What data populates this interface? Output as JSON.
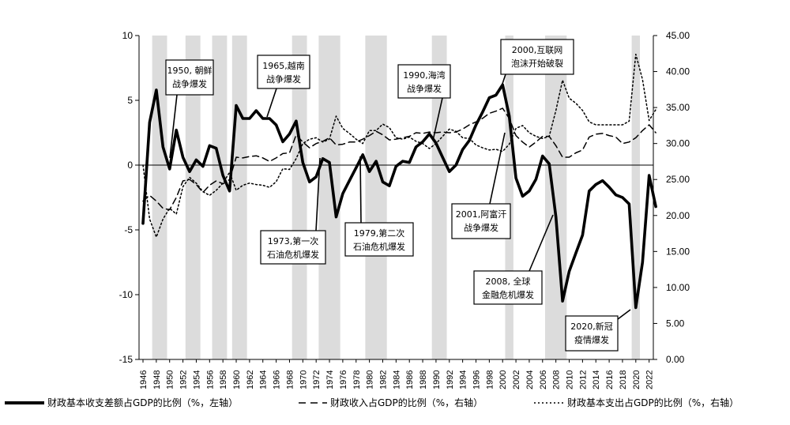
{
  "chart_data": {
    "type": "line",
    "title": "",
    "left_axis": {
      "ylim": [
        -15,
        10
      ],
      "ticks": [
        "-15",
        "-10",
        "-5",
        "0",
        "5",
        "10"
      ]
    },
    "right_axis": {
      "ylim": [
        0,
        45
      ],
      "ticks": [
        "0.00",
        "5.00",
        "10.00",
        "15.00",
        "20.00",
        "25.00",
        "30.00",
        "35.00",
        "40.00",
        "45.00"
      ]
    },
    "x_ticks": [
      "1946",
      "1948",
      "1950",
      "1952",
      "1954",
      "1956",
      "1958",
      "1960",
      "1962",
      "1964",
      "1966",
      "1968",
      "1970",
      "1972",
      "1974",
      "1976",
      "1978",
      "1980",
      "1982",
      "1984",
      "1986",
      "1988",
      "1990",
      "1992",
      "1994",
      "1996",
      "1998",
      "2000",
      "2002",
      "2004",
      "2006",
      "2008",
      "2010",
      "2012",
      "2014",
      "2016",
      "2018",
      "2020",
      "2022"
    ],
    "recessions": [
      [
        1948,
        1949
      ],
      [
        1953,
        1954
      ],
      [
        1957,
        1958
      ],
      [
        1960,
        1961
      ],
      [
        1969,
        1970
      ],
      [
        1973,
        1975
      ],
      [
        1980,
        1982
      ],
      [
        1990,
        1991
      ],
      [
        2001,
        2001
      ],
      [
        2007,
        2009
      ],
      [
        2020,
        2020
      ]
    ],
    "series": [
      {
        "name": "财政基本收支差额占GDP的比例（%，左轴）",
        "axis": "left",
        "style": "solid",
        "x": [
          1946,
          1947,
          1948,
          1949,
          1950,
          1951,
          1952,
          1953,
          1954,
          1955,
          1956,
          1957,
          1958,
          1959,
          1960,
          1961,
          1962,
          1963,
          1964,
          1965,
          1966,
          1967,
          1968,
          1969,
          1970,
          1971,
          1972,
          1973,
          1974,
          1975,
          1976,
          1977,
          1978,
          1979,
          1980,
          1981,
          1982,
          1983,
          1984,
          1985,
          1986,
          1987,
          1988,
          1989,
          1990,
          1991,
          1992,
          1993,
          1994,
          1995,
          1996,
          1997,
          1998,
          1999,
          2000,
          2001,
          2002,
          2003,
          2004,
          2005,
          2006,
          2007,
          2008,
          2009,
          2010,
          2011,
          2012,
          2013,
          2014,
          2015,
          2016,
          2017,
          2018,
          2019,
          2020,
          2021,
          2022,
          2023
        ],
        "values": [
          -4.5,
          3.3,
          5.8,
          1.4,
          -0.3,
          2.7,
          0.6,
          -0.5,
          0.4,
          -0.1,
          1.5,
          1.3,
          -0.8,
          -2.0,
          4.6,
          3.6,
          3.6,
          4.2,
          3.6,
          3.6,
          3.1,
          1.8,
          2.4,
          3.4,
          0.2,
          -1.3,
          -0.9,
          0.5,
          0.2,
          -4.0,
          -2.2,
          -1.2,
          -0.2,
          0.8,
          -0.5,
          0.3,
          -1.3,
          -1.6,
          -0.1,
          0.3,
          0.2,
          1.4,
          1.8,
          2.4,
          1.7,
          0.6,
          -0.5,
          0.0,
          1.2,
          1.9,
          3.1,
          4.1,
          5.2,
          5.4,
          6.2,
          3.8,
          -1.0,
          -2.4,
          -2.0,
          -1.1,
          0.7,
          0.1,
          -4.0,
          -10.5,
          -8.2,
          -6.8,
          -5.4,
          -2.0,
          -1.5,
          -1.2,
          -1.7,
          -2.3,
          -2.5,
          -3.0,
          -11.0,
          -7.5,
          -0.8,
          -3.2
        ]
      },
      {
        "name": "财政收入占GDP的比例（%，右轴）",
        "axis": "right",
        "style": "dash",
        "x": [
          1946,
          1947,
          1948,
          1949,
          1950,
          1951,
          1952,
          1953,
          1954,
          1955,
          1956,
          1957,
          1958,
          1959,
          1960,
          1961,
          1962,
          1963,
          1964,
          1965,
          1966,
          1967,
          1968,
          1969,
          1970,
          1971,
          1972,
          1973,
          1974,
          1975,
          1976,
          1977,
          1978,
          1979,
          1980,
          1981,
          1982,
          1983,
          1984,
          1985,
          1986,
          1987,
          1988,
          1989,
          1990,
          1991,
          1992,
          1993,
          1994,
          1995,
          1996,
          1997,
          1998,
          1999,
          2000,
          2001,
          2002,
          2003,
          2004,
          2005,
          2006,
          2007,
          2008,
          2009,
          2010,
          2011,
          2012,
          2013,
          2014,
          2015,
          2016,
          2017,
          2018,
          2019,
          2020,
          2021,
          2022,
          2023
        ],
        "values": [
          22,
          22.8,
          22,
          21,
          20.8,
          22.5,
          24.8,
          25,
          24.3,
          23.2,
          24.2,
          24.8,
          24.4,
          25,
          28.1,
          28,
          28.2,
          28.3,
          28,
          27.5,
          28,
          28.6,
          28.7,
          31.2,
          30.2,
          29.4,
          30,
          30.3,
          30.8,
          29.8,
          29.9,
          30.2,
          30.2,
          30.6,
          31.1,
          31.7,
          31.2,
          30.5,
          30.6,
          30.8,
          31.0,
          31.5,
          31.4,
          31.6,
          31.5,
          31.6,
          31.5,
          31.6,
          32,
          32.6,
          33,
          33.5,
          34.2,
          34.5,
          34.9,
          33.5,
          31.1,
          30.2,
          29.5,
          30.2,
          31.0,
          31.0,
          29.7,
          28.1,
          28.1,
          28.7,
          29.1,
          30.9,
          31.3,
          31.4,
          31.1,
          30.9,
          30.0,
          30.2,
          30.8,
          31.8,
          32.6,
          31.5
        ]
      },
      {
        "name": "财政基本支出占GDP的比例（%，右轴）",
        "axis": "right",
        "style": "dot",
        "x": [
          1946,
          1947,
          1948,
          1949,
          1950,
          1951,
          1952,
          1953,
          1954,
          1955,
          1956,
          1957,
          1958,
          1959,
          1960,
          1961,
          1962,
          1963,
          1964,
          1965,
          1966,
          1967,
          1968,
          1969,
          1970,
          1971,
          1972,
          1973,
          1974,
          1975,
          1976,
          1977,
          1978,
          1979,
          1980,
          1981,
          1982,
          1983,
          1984,
          1985,
          1986,
          1987,
          1988,
          1989,
          1990,
          1991,
          1992,
          1993,
          1994,
          1995,
          1996,
          1997,
          1998,
          1999,
          2000,
          2001,
          2002,
          2003,
          2004,
          2005,
          2006,
          2007,
          2008,
          2009,
          2010,
          2011,
          2012,
          2013,
          2014,
          2015,
          2016,
          2017,
          2018,
          2019,
          2020,
          2021,
          2022,
          2023
        ],
        "values": [
          27,
          19.5,
          17,
          19.5,
          21,
          20.2,
          24,
          25.3,
          24.5,
          23.3,
          22.8,
          23.5,
          24.5,
          26,
          23.5,
          24.2,
          24.5,
          24.3,
          24.2,
          23.9,
          24.7,
          26.5,
          26.4,
          27.9,
          30,
          30.6,
          30.8,
          30.2,
          30.6,
          33.8,
          32.1,
          31.4,
          30.6,
          30.0,
          31.8,
          31.8,
          32.7,
          32.2,
          30.8,
          30.6,
          30.9,
          30.3,
          30.0,
          29.3,
          30.0,
          31.0,
          32.0,
          31.7,
          30.8,
          30.7,
          29.8,
          29.4,
          29.1,
          29.2,
          28.9,
          29.9,
          32.1,
          32.5,
          31.5,
          31.0,
          30.7,
          31.0,
          34.6,
          38.8,
          36.3,
          35.6,
          34.6,
          33.0,
          32.6,
          32.6,
          32.6,
          32.6,
          32.6,
          33.1,
          42.4,
          38.9,
          33.2,
          34.7
        ]
      }
    ]
  },
  "annotations": [
    {
      "id": "1950",
      "lines": [
        "1950, 朝鲜",
        "战争爆发"
      ]
    },
    {
      "id": "1965",
      "lines": [
        "1965,越南",
        "战争爆发"
      ]
    },
    {
      "id": "1990",
      "lines": [
        "1990,海湾",
        "战争爆发"
      ]
    },
    {
      "id": "2000",
      "lines": [
        "2000,互联网",
        "泡沫开始破裂"
      ]
    },
    {
      "id": "1973",
      "lines": [
        "1973,第一次",
        "石油危机爆发"
      ]
    },
    {
      "id": "1979",
      "lines": [
        "1979,第二次",
        "石油危机爆发"
      ]
    },
    {
      "id": "2001",
      "lines": [
        "2001,阿富汗",
        "战争爆发"
      ]
    },
    {
      "id": "2008",
      "lines": [
        "2008, 全球",
        "金融危机爆发"
      ]
    },
    {
      "id": "2020",
      "lines": [
        "2020,新冠",
        "疫情爆发"
      ]
    }
  ],
  "legend": [
    "财政基本收支差额占GDP的比例（%，左轴）",
    "财政收入占GDP的比例（%，右轴）",
    "财政基本支出占GDP的比例（%，右轴）"
  ]
}
